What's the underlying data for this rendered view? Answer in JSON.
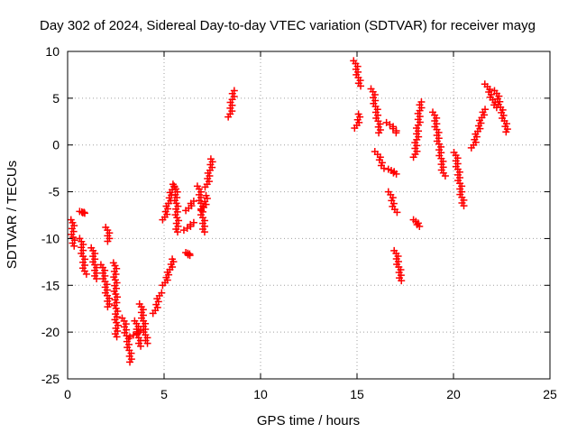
{
  "chart_data": {
    "type": "scatter",
    "title": "Day 302 of 2024, Sidereal Day-to-day VTEC variation (SDTVAR) for receiver mayg",
    "xlabel": "GPS time / hours",
    "ylabel": "SDTVAR / TECUs",
    "xlim": [
      0,
      25
    ],
    "ylim": [
      -25,
      10
    ],
    "xticks": [
      0,
      5,
      10,
      15,
      20,
      25
    ],
    "yticks": [
      -25,
      -20,
      -15,
      -10,
      -5,
      0,
      5,
      10
    ],
    "grid": true,
    "marker": "plus",
    "color": "#ff0000",
    "series": [
      {
        "name": "SDTVAR",
        "segments": [
          {
            "x": [
              0.25,
              0.3
            ],
            "y": [
              -8,
              -10.8
            ]
          },
          {
            "x": [
              0.7,
              0.85
            ],
            "y": [
              -7.1,
              -7.3
            ]
          },
          {
            "x": [
              0.7,
              0.9
            ],
            "y": [
              -10,
              -13.8
            ]
          },
          {
            "x": [
              1.3,
              1.5
            ],
            "y": [
              -11,
              -14.3
            ]
          },
          {
            "x": [
              1.8,
              2.15
            ],
            "y": [
              -12.8,
              -17.3
            ]
          },
          {
            "x": [
              2.05,
              2.15
            ],
            "y": [
              -8.8,
              -10.3
            ]
          },
          {
            "x": [
              2.45,
              2.55
            ],
            "y": [
              -12.6,
              -20.5
            ]
          },
          {
            "x": [
              2.9,
              3.3
            ],
            "y": [
              -18.5,
              -23.2
            ]
          },
          {
            "x": [
              3.3,
              3.75
            ],
            "y": [
              -20.5,
              -19.8
            ]
          },
          {
            "x": [
              3.55,
              3.75
            ],
            "y": [
              -18.8,
              -21.5
            ]
          },
          {
            "x": [
              3.8,
              4.1
            ],
            "y": [
              -17,
              -21.2
            ]
          },
          {
            "x": [
              4.5,
              4.8
            ],
            "y": [
              -18,
              -15.8
            ]
          },
          {
            "x": [
              5.0,
              5.5
            ],
            "y": [
              -15,
              -12.2
            ]
          },
          {
            "x": [
              5.0,
              5.5
            ],
            "y": [
              -8,
              -4.2
            ]
          },
          {
            "x": [
              5.6,
              5.7
            ],
            "y": [
              -4.4,
              -9.3
            ]
          },
          {
            "x": [
              6.1,
              6.5
            ],
            "y": [
              -9.1,
              -8.3
            ]
          },
          {
            "x": [
              6.2,
              6.3
            ],
            "y": [
              -11.5,
              -11.8
            ]
          },
          {
            "x": [
              6.2,
              6.5
            ],
            "y": [
              -7,
              -6
            ]
          },
          {
            "x": [
              6.8,
              7.1
            ],
            "y": [
              -4.4,
              -9.3
            ]
          },
          {
            "x": [
              7.0,
              7.25
            ],
            "y": [
              -7,
              -5.4
            ]
          },
          {
            "x": [
              7.2,
              7.5
            ],
            "y": [
              -4.5,
              -1.5
            ]
          },
          {
            "x": [
              8.4,
              8.6
            ],
            "y": [
              3,
              5.8
            ]
          },
          {
            "x": [
              14.9,
              15.15
            ],
            "y": [
              9,
              6.3
            ]
          },
          {
            "x": [
              14.95,
              15.15
            ],
            "y": [
              1.8,
              3.3
            ]
          },
          {
            "x": [
              15.8,
              16.2
            ],
            "y": [
              6,
              1.3
            ]
          },
          {
            "x": [
              16.0,
              16.4
            ],
            "y": [
              -0.7,
              -2.5
            ]
          },
          {
            "x": [
              16.6,
              17.1
            ],
            "y": [
              2.4,
              1.3
            ]
          },
          {
            "x": [
              16.7,
              17.0
            ],
            "y": [
              -2.6,
              -3.1
            ]
          },
          {
            "x": [
              16.7,
              17.0
            ],
            "y": [
              -5,
              -7.2
            ]
          },
          {
            "x": [
              17.0,
              17.3
            ],
            "y": [
              -11.3,
              -14.5
            ]
          },
          {
            "x": [
              18.0,
              18.3
            ],
            "y": [
              -1.3,
              4.6
            ]
          },
          {
            "x": [
              18.0,
              18.2
            ],
            "y": [
              -8,
              -8.7
            ]
          },
          {
            "x": [
              19.0,
              19.5
            ],
            "y": [
              3.5,
              -3.3
            ]
          },
          {
            "x": [
              20.1,
              20.5
            ],
            "y": [
              -0.8,
              -6.5
            ]
          },
          {
            "x": [
              21.0,
              21.6
            ],
            "y": [
              -0.3,
              3.8
            ]
          },
          {
            "x": [
              21.7,
              22.2
            ],
            "y": [
              6.5,
              4
            ]
          },
          {
            "x": [
              22.2,
              22.8
            ],
            "y": [
              5.8,
              1.4
            ]
          }
        ]
      }
    ]
  }
}
